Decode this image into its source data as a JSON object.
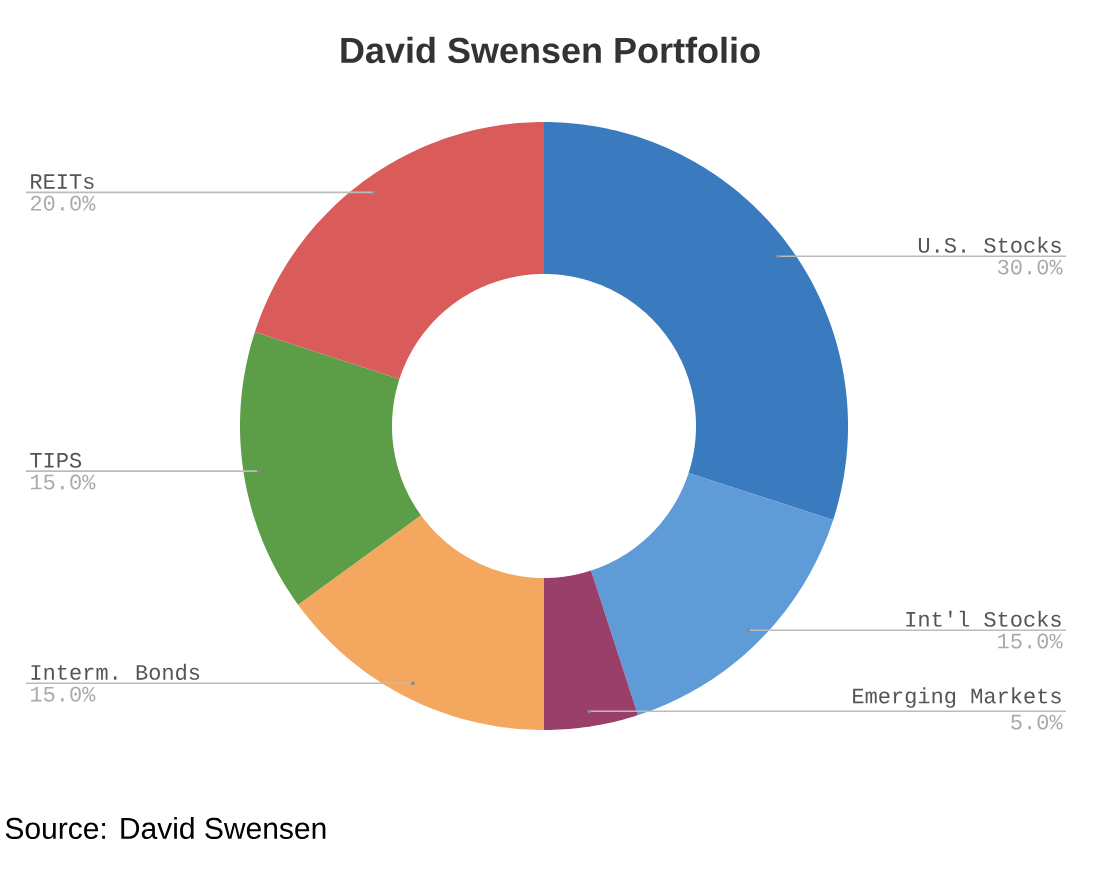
{
  "chart_data": {
    "type": "donut",
    "title": "David Swensen Portfolio",
    "categories": [
      "U.S. Stocks",
      "Int'l Stocks",
      "Emerging Markets",
      "Interm. Bonds",
      "TIPS",
      "REITs"
    ],
    "values": [
      30,
      15,
      5,
      15,
      15,
      20
    ],
    "colors": [
      "#3a7abf",
      "#5e9bd7",
      "#9a3e6a",
      "#f4a85f",
      "#5c9e47",
      "#d95c5b"
    ],
    "value_labels": [
      "30.0%",
      "15.0%",
      "5.0%",
      "15.0%",
      "15.0%",
      "20.0%"
    ],
    "annotations": [
      "Source: David Swensen"
    ]
  }
}
